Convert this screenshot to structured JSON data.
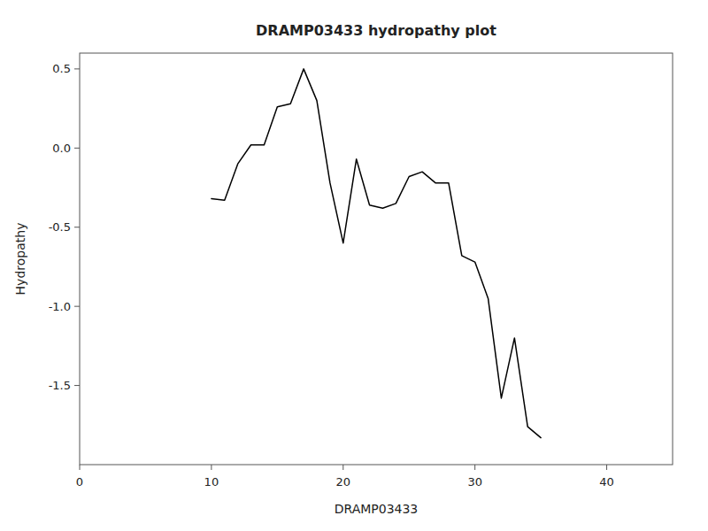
{
  "chart_data": {
    "type": "line",
    "title": "DRAMP03433 hydropathy plot",
    "xlabel": "DRAMP03433",
    "ylabel": "Hydropathy",
    "xlim": [
      0,
      45
    ],
    "ylim": [
      -2.0,
      0.6
    ],
    "xticks": [
      0,
      10,
      20,
      30,
      40
    ],
    "yticks": [
      0.5,
      {
        "value": 0.0,
        "label": "0.0"
      },
      -0.5,
      {
        "value": -1.0,
        "label": "-1.0"
      },
      -1.5
    ],
    "color": "#000000",
    "grid": false,
    "x": [
      10,
      11,
      12,
      13,
      14,
      15,
      16,
      17,
      18,
      19,
      20,
      21,
      22,
      23,
      24,
      25,
      26,
      27,
      28,
      29,
      30,
      31,
      32,
      33,
      34,
      35
    ],
    "values": [
      -0.32,
      -0.33,
      -0.1,
      0.02,
      0.02,
      0.26,
      0.28,
      0.5,
      0.3,
      -0.22,
      -0.6,
      -0.07,
      -0.36,
      -0.38,
      -0.35,
      -0.18,
      -0.15,
      -0.22,
      -0.22,
      -0.68,
      -0.72,
      -0.95,
      -1.58,
      -1.2,
      -1.76,
      -1.83
    ]
  }
}
